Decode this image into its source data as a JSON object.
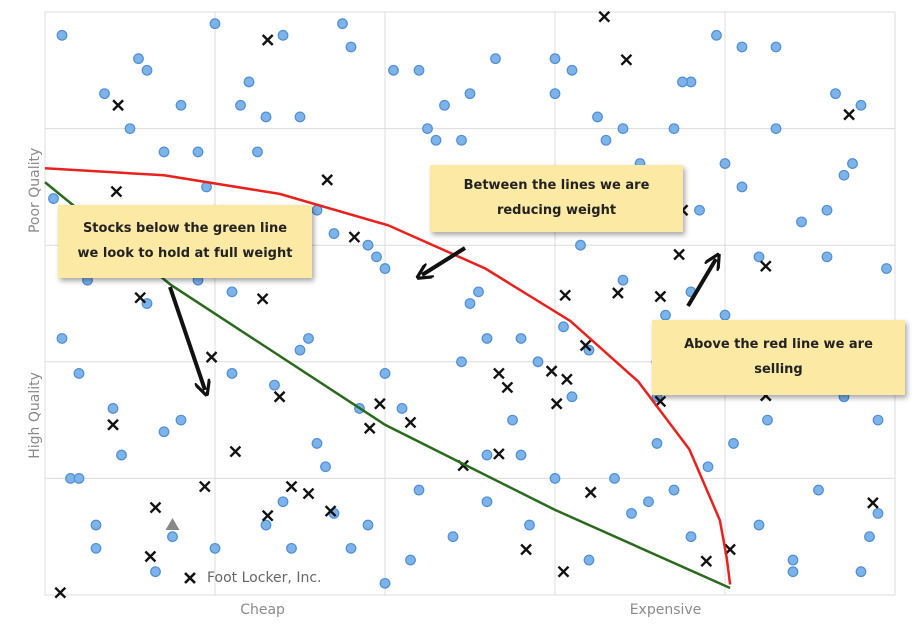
{
  "chart_data": {
    "type": "scatter",
    "xlim": [
      0,
      5
    ],
    "ylim": [
      0,
      5
    ],
    "xgrid": [
      0,
      1,
      2,
      3,
      4,
      5
    ],
    "ygrid": [
      0,
      1,
      2,
      3,
      4,
      5
    ],
    "xlabels": [
      {
        "value": 1.28,
        "label": "Cheap"
      },
      {
        "value": 3.65,
        "label": "Expensive"
      }
    ],
    "ylabels": [
      {
        "value": 3.47,
        "label": "Poor Quality"
      },
      {
        "value": 1.54,
        "label": "High Quality"
      }
    ],
    "series": [
      {
        "marker": "circle",
        "color": "#7db3e8",
        "x": [
          0.1,
          0.4,
          0.8,
          1.2,
          1.5,
          1.9,
          2.3,
          2.6,
          3.0,
          3.4,
          3.7,
          4.1,
          4.5,
          4.8,
          0.3,
          0.6,
          1.0,
          1.4,
          1.7,
          2.1,
          2.5,
          2.8,
          3.2,
          3.5,
          3.9,
          4.3,
          4.6,
          4.9,
          0.2,
          0.9,
          1.3,
          1.6,
          2.0,
          2.4,
          2.7,
          3.1,
          3.6,
          4.0,
          4.4,
          4.7,
          0.5,
          0.7,
          1.1,
          1.8,
          2.2,
          2.9,
          3.3,
          3.8,
          4.2,
          4.8,
          0.15,
          0.55,
          1.05,
          1.45,
          1.95,
          2.35,
          2.75,
          3.15,
          3.55,
          3.95,
          4.35,
          4.75,
          0.25,
          0.65,
          1.25,
          1.65,
          2.05,
          2.45,
          2.85,
          3.25,
          3.65,
          4.05,
          4.45,
          4.85,
          0.35,
          0.85,
          1.35,
          1.75,
          2.15,
          2.55,
          2.95,
          3.35,
          3.75,
          4.15,
          4.55,
          4.95,
          0.45,
          0.95,
          1.55,
          2.25,
          2.65,
          3.05,
          3.45,
          3.85,
          4.25,
          4.65,
          0.05,
          0.75,
          1.15,
          1.85,
          2.45,
          3.0,
          3.6,
          4.1,
          4.6,
          0.3,
          0.9,
          1.5,
          2.0,
          2.6,
          3.2,
          3.8,
          4.4,
          4.9,
          0.6,
          1.2,
          1.8,
          2.4,
          3.0,
          3.6,
          4.2,
          4.7,
          0.1,
          0.7,
          1.3,
          1.9,
          2.5,
          3.1,
          3.7,
          4.3,
          4.8,
          0.4,
          1.0,
          1.6,
          2.2,
          2.8,
          3.4,
          4.0,
          4.6,
          0.2,
          0.8,
          1.4,
          2.0,
          2.6,
          3.2,
          3.8,
          4.4,
          0.5,
          1.1,
          1.7
        ],
        "values": [
          4.8,
          3.2,
          1.5,
          4.4,
          2.1,
          0.6,
          3.9,
          1.2,
          4.6,
          2.7,
          0.9,
          3.5,
          1.8,
          4.2,
          0.4,
          2.5,
          4.9,
          0.8,
          3.1,
          1.6,
          4.3,
          2.2,
          0.3,
          3.7,
          1.1,
          4.7,
          2.9,
          0.7,
          1.9,
          3.8,
          4.1,
          1.3,
          2.8,
          0.5,
          3.4,
          4.5,
          1.7,
          2.4,
          0.2,
          3.6,
          4.0,
          1.4,
          2.6,
          4.7,
          0.9,
          2.0,
          3.9,
          4.4,
          0.6,
          2.3,
          1.0,
          4.6,
          3.3,
          0.4,
          2.9,
          4.2,
          1.5,
          3.0,
          0.8,
          4.8,
          1.9,
          3.7,
          2.7,
          0.2,
          3.8,
          1.1,
          4.5,
          2.0,
          0.6,
          4.1,
          2.4,
          1.3,
          3.2,
          0.5,
          4.3,
          3.0,
          1.8,
          4.9,
          0.3,
          2.6,
          3.6,
          1.0,
          4.4,
          2.1,
          0.9,
          2.8,
          1.2,
          3.5,
          2.2,
          4.0,
          4.6,
          2.3,
          0.7,
          3.3,
          1.5,
          4.3,
          3.4,
          0.5,
          4.2,
          1.6,
          3.9,
          1.0,
          2.0,
          4.7,
          3.3,
          0.6,
          2.7,
          4.1,
          1.9,
          0.8,
          3.2,
          2.6,
          0.3,
          1.5,
          4.5,
          2.9,
          0.4,
          3.6,
          4.3,
          1.3,
          2.9,
          1.7,
          2.2,
          3.8,
          0.6,
          3.0,
          2.5,
          1.7,
          4.0,
          4.0,
          0.2,
          1.6,
          0.4,
          3.3,
          4.5,
          1.2,
          4.0,
          3.7,
          2.2,
          1.0,
          4.2,
          4.8,
          0.1,
          2.2,
          2.1,
          0.5,
          1.8,
          3.0,
          1.9,
          0.7
        ]
      },
      {
        "name": "Foot Locker, Inc.",
        "marker": "x",
        "color": "#111111",
        "x": [
          3.29,
          1.31,
          3.42,
          0.43,
          4.73,
          0.42,
          1.66,
          1.82,
          3.75,
          3.73,
          4.24,
          3.06,
          3.37,
          3.62,
          0.56,
          1.28,
          3.18,
          0.98,
          2.67,
          2.98,
          2.72,
          3.07,
          3.62,
          4.24,
          1.38,
          1.97,
          3.01,
          0.4,
          2.15,
          1.91,
          2.67,
          1.12,
          2.46,
          0.94,
          1.45,
          1.55,
          3.21,
          4.87,
          0.65,
          1.68,
          1.31,
          0.62,
          2.83,
          3.89,
          4.03,
          3.05,
          0.09
        ],
        "values": [
          4.96,
          4.76,
          4.59,
          4.2,
          4.12,
          3.46,
          3.56,
          3.07,
          3.3,
          2.92,
          2.82,
          2.57,
          2.59,
          2.56,
          2.55,
          2.54,
          2.14,
          2.04,
          1.9,
          1.92,
          1.78,
          1.85,
          1.66,
          1.71,
          1.7,
          1.64,
          1.64,
          1.46,
          1.48,
          1.43,
          1.21,
          1.23,
          1.11,
          0.93,
          0.93,
          0.87,
          0.88,
          0.79,
          0.75,
          0.72,
          0.68,
          0.33,
          0.39,
          0.29,
          0.39,
          0.2,
          0.02
        ]
      },
      {
        "marker": "triangle",
        "color": "#888888",
        "x": [
          0.75
        ],
        "values": [
          0.6
        ]
      },
      {
        "marker": "line",
        "color": "#e8211c",
        "x": [
          0,
          0.7,
          1.38,
          2.02,
          2.59,
          3.09,
          3.49,
          3.79,
          3.97,
          4.01,
          4.03
        ],
        "values": [
          3.66,
          3.6,
          3.44,
          3.17,
          2.8,
          2.35,
          1.83,
          1.25,
          0.64,
          0.32,
          0.09
        ]
      },
      {
        "marker": "line",
        "color": "#2a6a1c",
        "x": [
          0,
          0.74,
          2,
          3,
          4.03
        ],
        "values": [
          3.54,
          2.66,
          1.46,
          0.73,
          0.06
        ]
      }
    ],
    "annotations": [
      {
        "text": "Stocks below the green line we look to hold at full weight"
      },
      {
        "text": "Between the lines we are reducing weight"
      },
      {
        "text": "Above the red line we are selling"
      }
    ]
  }
}
